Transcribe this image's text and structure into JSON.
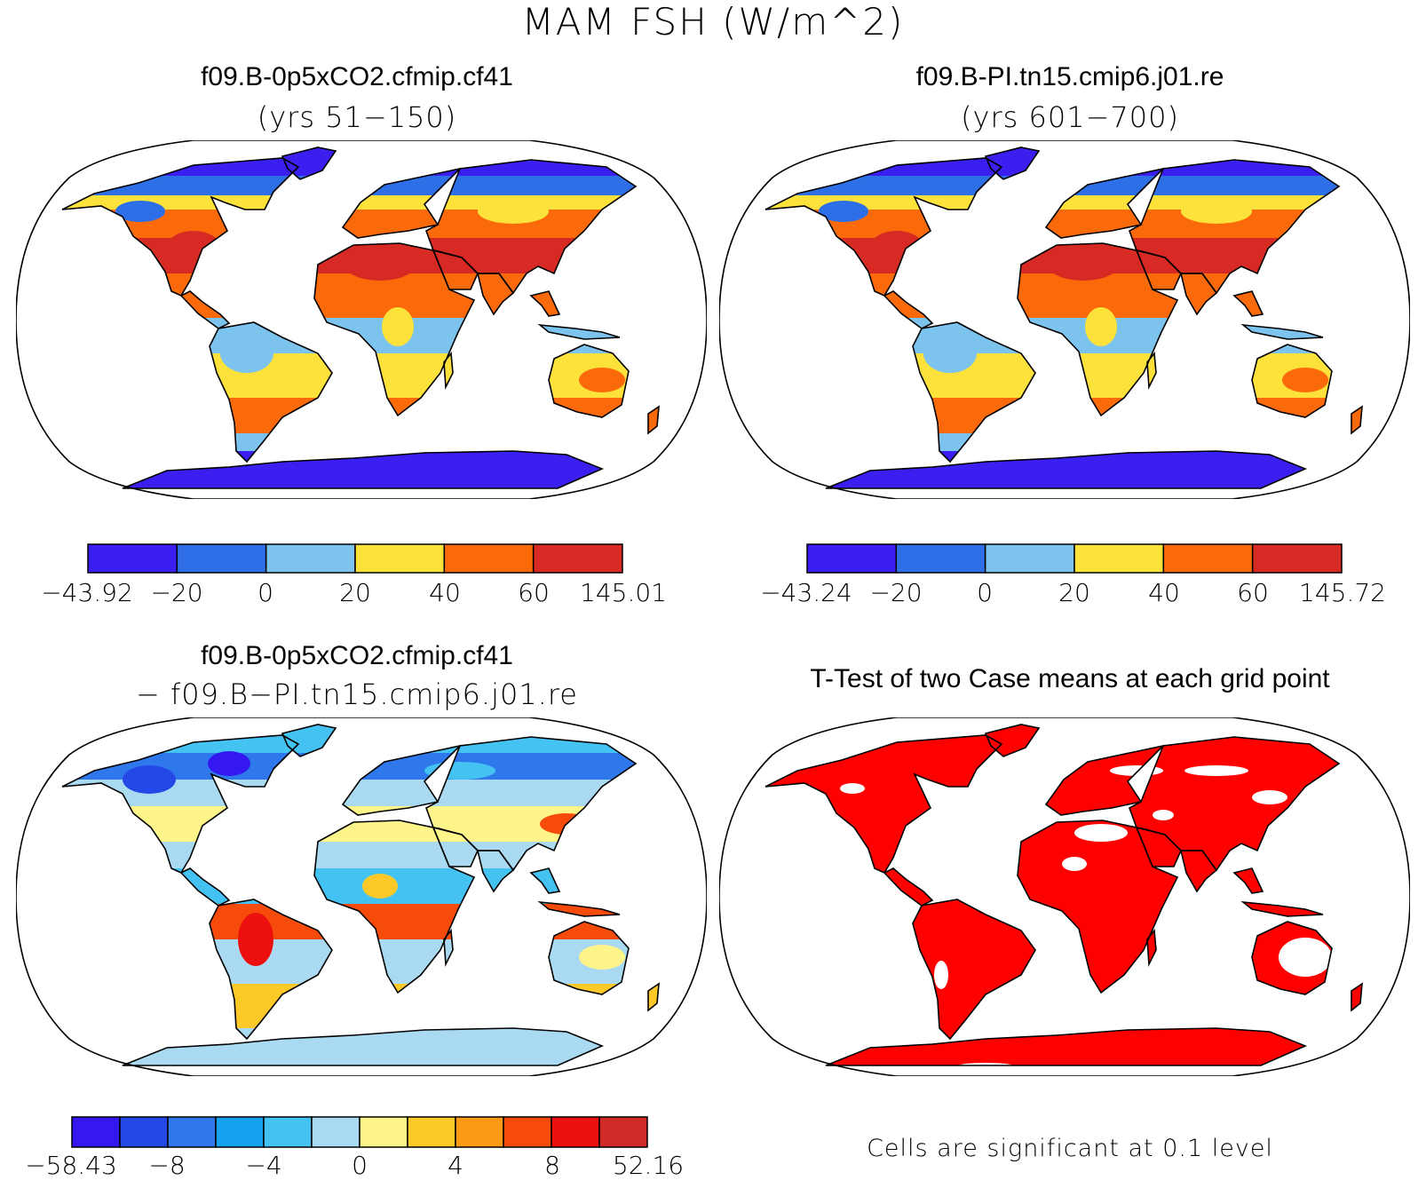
{
  "title": "MAM FSH (W/m^2)",
  "panels": {
    "top_left": {
      "case": "f09.B-0p5xCO2.cfmip.cf41",
      "years": "(yrs 51−150)",
      "colorbar": {
        "colors": [
          "#3a1ff0",
          "#2e6ee6",
          "#7cc3ee",
          "#fce23a",
          "#fb6a0a",
          "#d82a24"
        ],
        "labels": [
          "−43.92",
          "−20",
          "0",
          "20",
          "40",
          "60",
          "145.01"
        ]
      }
    },
    "top_right": {
      "case": "f09.B-PI.tn15.cmip6.j01.re",
      "years": "(yrs 601−700)",
      "colorbar": {
        "colors": [
          "#3a1ff0",
          "#2e6ee6",
          "#7cc3ee",
          "#fce23a",
          "#fb6a0a",
          "#d82a24"
        ],
        "labels": [
          "−43.24",
          "−20",
          "0",
          "20",
          "40",
          "60",
          "145.72"
        ]
      }
    },
    "bottom_left": {
      "case": "f09.B-0p5xCO2.cfmip.cf41",
      "minus_case": "−  f09.B−PI.tn15.cmip6.j01.re",
      "colorbar": {
        "colors": [
          "#3518f0",
          "#2448e6",
          "#2f78ec",
          "#17a2f0",
          "#44c2f2",
          "#a9daf2",
          "#fdf48a",
          "#fcc929",
          "#fb9a14",
          "#f74b0c",
          "#ee0f0f",
          "#d02a26"
        ],
        "labels": [
          "−58.43",
          "−8",
          "−4",
          "0",
          "4",
          "8",
          "52.16"
        ]
      }
    },
    "bottom_right": {
      "title": "T-Test of two Case means at each grid point",
      "note": "Cells are significant at 0.1 level",
      "color": "#ff0000"
    }
  }
}
